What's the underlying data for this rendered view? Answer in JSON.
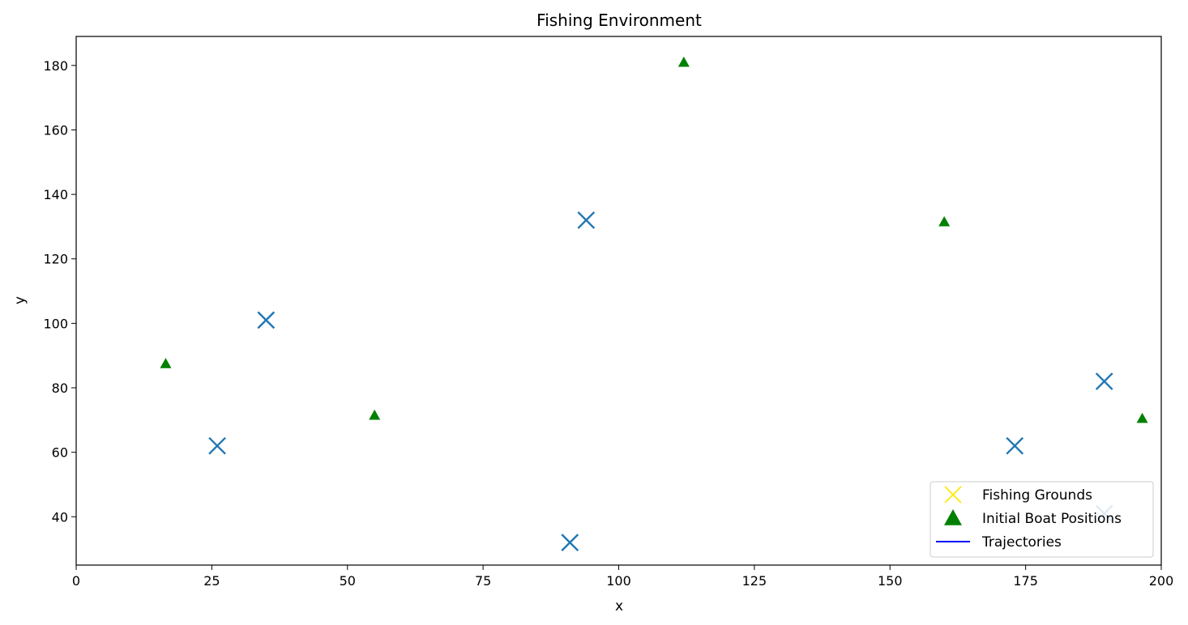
{
  "chart_data": {
    "type": "scatter",
    "title": "Fishing Environment",
    "xlabel": "x",
    "ylabel": "y",
    "xlim": [
      0,
      200
    ],
    "ylim": [
      25,
      189
    ],
    "x_ticks": [
      0,
      25,
      50,
      75,
      100,
      125,
      150,
      175,
      200
    ],
    "y_ticks": [
      40,
      60,
      80,
      100,
      120,
      140,
      160,
      180
    ],
    "grid": false,
    "legend_position": "lower-right",
    "legend": [
      {
        "label": "Fishing Grounds",
        "marker": "x",
        "color": "#ffe600"
      },
      {
        "label": "Initial Boat Positions",
        "marker": "triangle",
        "color": "#008000"
      },
      {
        "label": "Trajectories",
        "marker": "line",
        "color": "#0000ff"
      }
    ],
    "series": [
      {
        "name": "Fishing Grounds",
        "marker": "x",
        "color": "#1f77b4",
        "points": [
          {
            "x": 26,
            "y": 62
          },
          {
            "x": 35,
            "y": 101
          },
          {
            "x": 94,
            "y": 132
          },
          {
            "x": 91,
            "y": 32
          },
          {
            "x": 173,
            "y": 62
          },
          {
            "x": 189.5,
            "y": 82
          },
          {
            "x": 189.5,
            "y": 41
          }
        ]
      },
      {
        "name": "Initial Boat Positions",
        "marker": "triangle",
        "color": "#008000",
        "points": [
          {
            "x": 16.5,
            "y": 87.5
          },
          {
            "x": 55,
            "y": 71.5
          },
          {
            "x": 112,
            "y": 181
          },
          {
            "x": 160,
            "y": 131.5
          },
          {
            "x": 196.5,
            "y": 70.5
          }
        ]
      },
      {
        "name": "Trajectories",
        "marker": "line",
        "color": "#0000ff",
        "points": []
      }
    ]
  }
}
